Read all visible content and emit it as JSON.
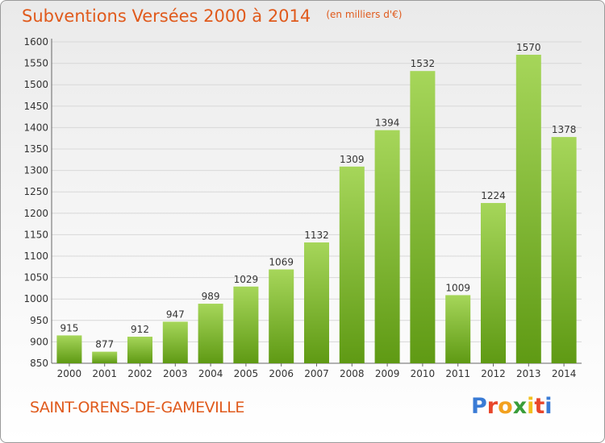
{
  "header": {
    "title": "Subventions Versées 2000 à 2014",
    "subtitle": "(en milliers d'€)"
  },
  "footer": {
    "place_name": "SAINT-ORENS-DE-GAMEVILLE",
    "logo_text": "Proxiti",
    "logo_colors": [
      "#3a7bd5",
      "#e8462a",
      "#f2a11f",
      "#3a9d3a",
      "#f2c01f",
      "#e8462a",
      "#3a7bd5"
    ]
  },
  "colors": {
    "accent": "#e05a1c",
    "bar_light": "#a6d65a",
    "bar_dark": "#5f9a14",
    "grid": "#d8d8d8",
    "text": "#333333"
  },
  "chart_data": {
    "type": "bar",
    "title": "Subventions Versées 2000 à 2014",
    "subtitle": "(en milliers d'€)",
    "xlabel": "",
    "ylabel": "",
    "categories": [
      "2000",
      "2001",
      "2002",
      "2003",
      "2004",
      "2005",
      "2006",
      "2007",
      "2008",
      "2009",
      "2010",
      "2011",
      "2012",
      "2013",
      "2014"
    ],
    "values": [
      915,
      877,
      912,
      947,
      989,
      1029,
      1069,
      1132,
      1309,
      1394,
      1532,
      1009,
      1224,
      1570,
      1378
    ],
    "ylim": [
      850,
      1600
    ],
    "yticks": [
      850,
      900,
      950,
      1000,
      1050,
      1100,
      1150,
      1200,
      1250,
      1300,
      1350,
      1400,
      1450,
      1500,
      1550,
      1600
    ],
    "grid": true,
    "data_labels": true
  }
}
